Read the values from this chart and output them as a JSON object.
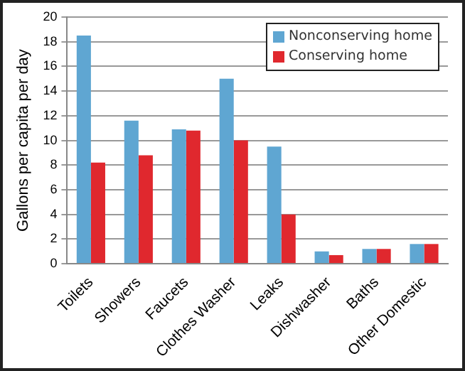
{
  "chart_data": {
    "type": "bar",
    "ylabel": "Gallons per capita per day",
    "categories": [
      "Toilets",
      "Showers",
      "Faucets",
      "Clothes Washer",
      "Leaks",
      "Dishwasher",
      "Baths",
      "Other Domestic"
    ],
    "series": [
      {
        "name": "Nonconserving home",
        "color": "#5fa6d2",
        "values": [
          18.5,
          11.6,
          10.9,
          15.0,
          9.5,
          1.0,
          1.2,
          1.6
        ]
      },
      {
        "name": "Conserving home",
        "color": "#e0282e",
        "values": [
          8.2,
          8.8,
          10.8,
          10.0,
          4.0,
          0.7,
          1.2,
          1.6
        ]
      }
    ],
    "ylim": [
      0,
      20
    ],
    "yticks": [
      0,
      2,
      4,
      6,
      8,
      10,
      12,
      14,
      16,
      18,
      20
    ],
    "grid": "y",
    "legend": "top right"
  }
}
